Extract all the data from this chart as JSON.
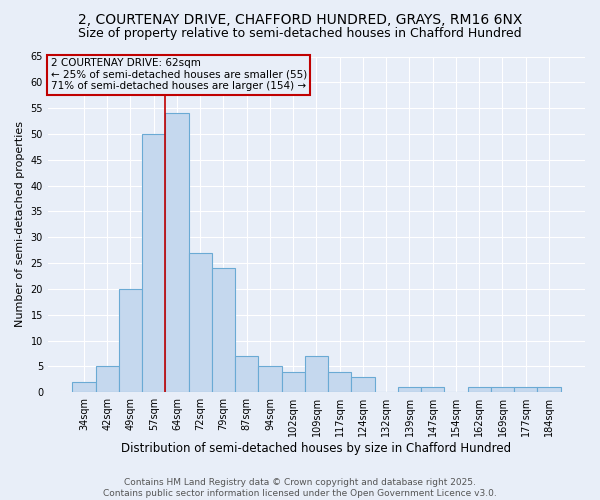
{
  "title": "2, COURTENAY DRIVE, CHAFFORD HUNDRED, GRAYS, RM16 6NX",
  "subtitle": "Size of property relative to semi-detached houses in Chafford Hundred",
  "categories": [
    "34sqm",
    "42sqm",
    "49sqm",
    "57sqm",
    "64sqm",
    "72sqm",
    "79sqm",
    "87sqm",
    "94sqm",
    "102sqm",
    "109sqm",
    "117sqm",
    "124sqm",
    "132sqm",
    "139sqm",
    "147sqm",
    "154sqm",
    "162sqm",
    "169sqm",
    "177sqm",
    "184sqm"
  ],
  "values": [
    2,
    5,
    20,
    50,
    54,
    27,
    24,
    7,
    5,
    4,
    7,
    4,
    3,
    0,
    1,
    1,
    0,
    1,
    1,
    1,
    1
  ],
  "bar_color": "#c5d8ee",
  "bar_edgecolor": "#6aaad4",
  "bar_linewidth": 0.8,
  "vline_x_index": 4,
  "vline_color": "#c00000",
  "ylabel": "Number of semi-detached properties",
  "xlabel": "Distribution of semi-detached houses by size in Chafford Hundred",
  "ylim": [
    0,
    65
  ],
  "yticks": [
    0,
    5,
    10,
    15,
    20,
    25,
    30,
    35,
    40,
    45,
    50,
    55,
    60,
    65
  ],
  "annotation_title": "2 COURTENAY DRIVE: 62sqm",
  "annotation_line1": "← 25% of semi-detached houses are smaller (55)",
  "annotation_line2": "71% of semi-detached houses are larger (154) →",
  "annotation_box_color": "#c00000",
  "footer_line1": "Contains HM Land Registry data © Crown copyright and database right 2025.",
  "footer_line2": "Contains public sector information licensed under the Open Government Licence v3.0.",
  "background_color": "#e8eef8",
  "grid_color": "#ffffff",
  "title_fontsize": 10,
  "subtitle_fontsize": 9,
  "xlabel_fontsize": 8.5,
  "ylabel_fontsize": 8,
  "tick_fontsize": 7,
  "footer_fontsize": 6.5,
  "annotation_fontsize": 7.5
}
